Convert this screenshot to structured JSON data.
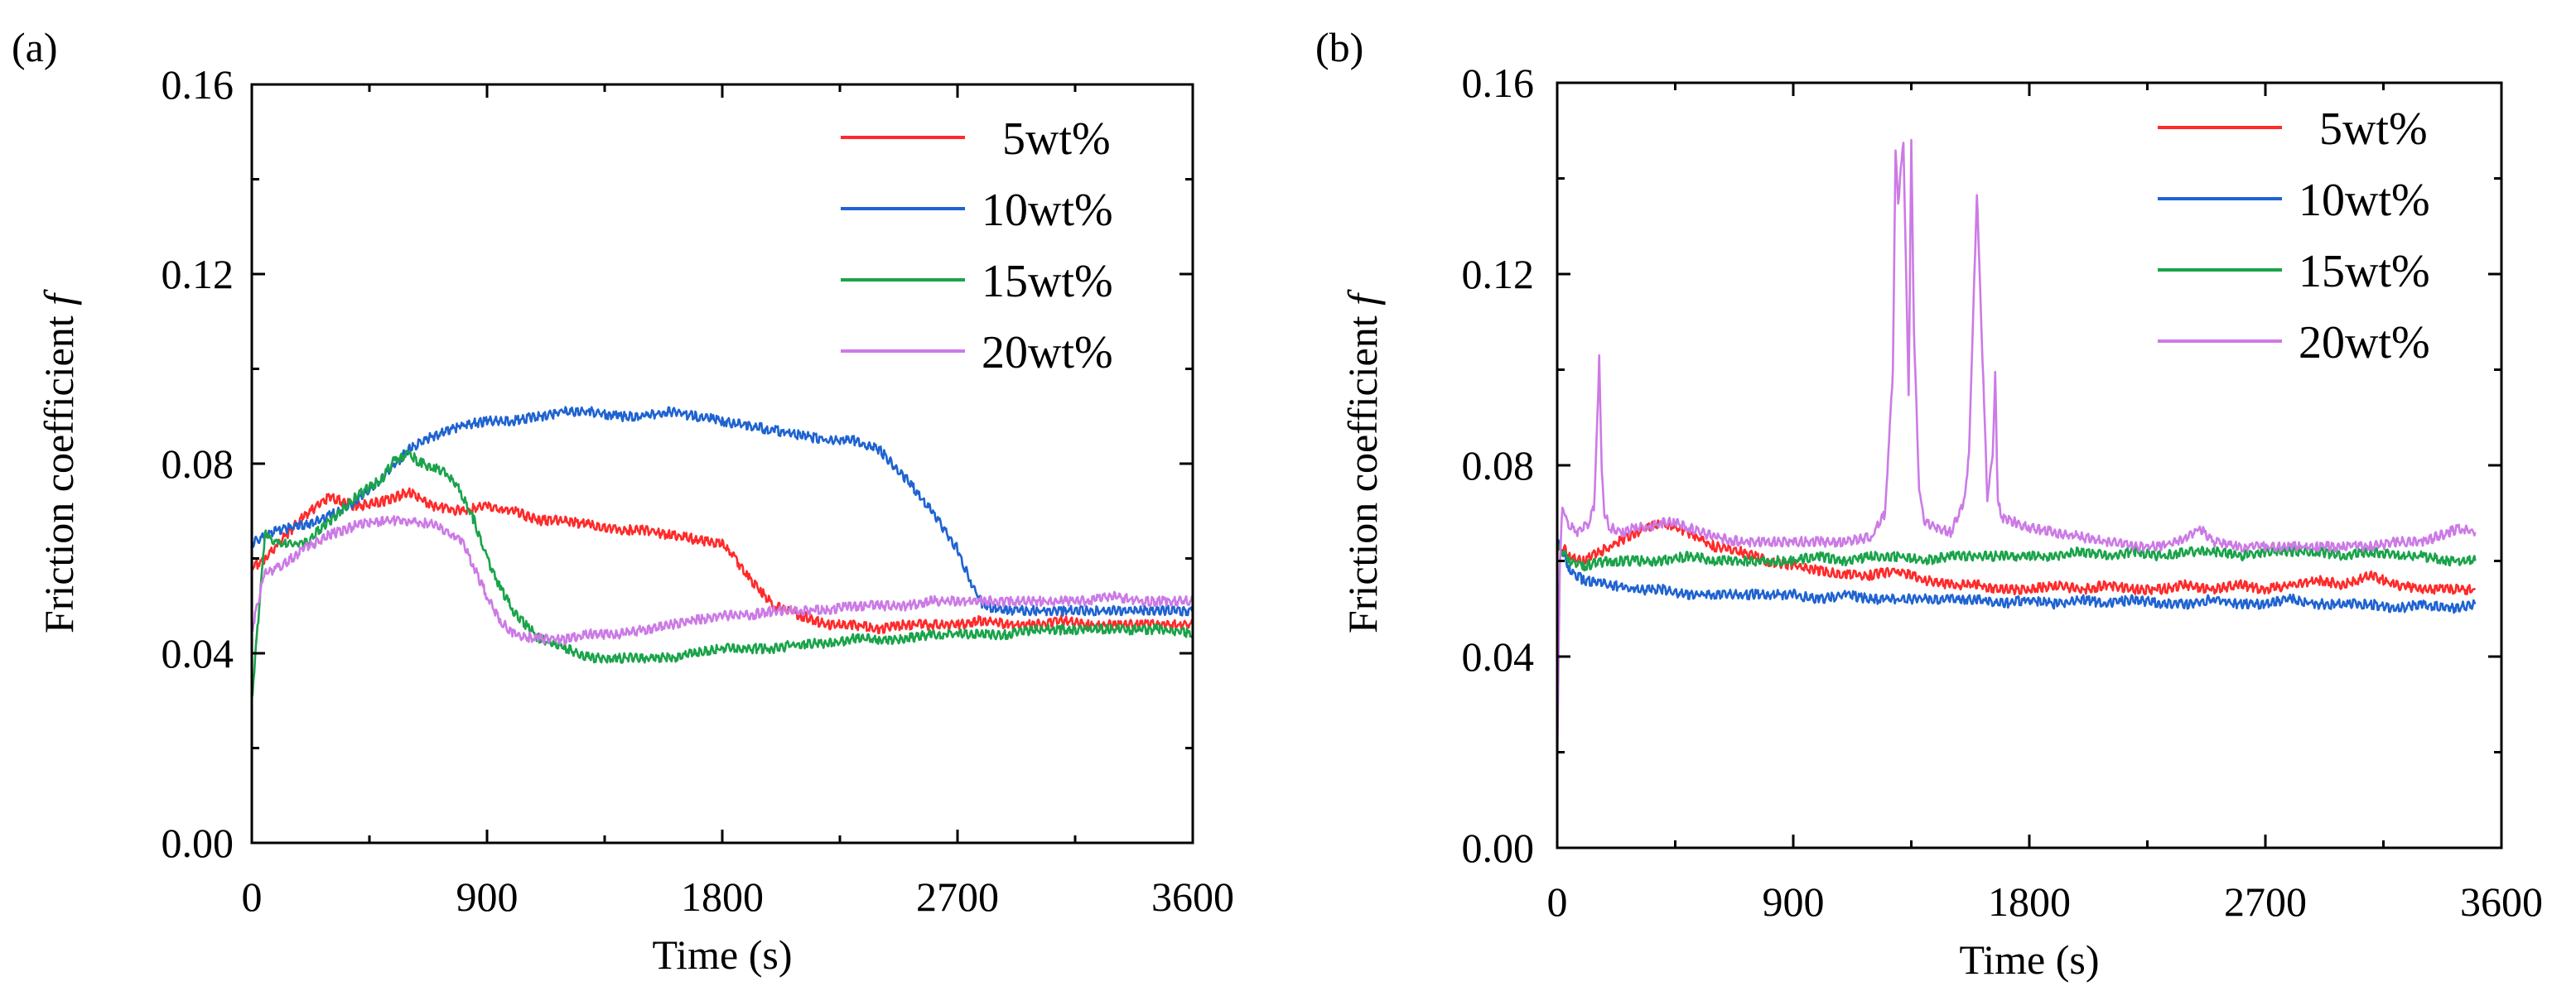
{
  "figure": {
    "panels": [
      {
        "label": "(a)",
        "xlabel": "Time (s)",
        "ylabel": "Friction coefficient f",
        "ylabel_text": "Friction coefficient ",
        "ylabel_symbol": "f",
        "xlim": [
          0,
          3600
        ],
        "ylim": [
          0.0,
          0.16
        ],
        "x_ticks": [
          "0",
          "900",
          "1800",
          "2700",
          "3600"
        ],
        "y_ticks": [
          "0.00",
          "0.04",
          "0.08",
          "0.12",
          "0.16"
        ]
      },
      {
        "label": "(b)",
        "xlabel": "Time (s)",
        "ylabel": "Friction coefficient f",
        "ylabel_text": "Friction coefficient ",
        "ylabel_symbol": "f",
        "xlim": [
          0,
          3600
        ],
        "ylim": [
          0.0,
          0.16
        ],
        "x_ticks": [
          "0",
          "900",
          "1800",
          "2700",
          "3600"
        ],
        "y_ticks": [
          "0.00",
          "0.04",
          "0.08",
          "0.12",
          "0.16"
        ]
      }
    ]
  },
  "chart_data": [
    {
      "type": "line",
      "xlabel": "Time (s)",
      "ylabel": "Friction coefficient f",
      "xlim": [
        0,
        3600
      ],
      "ylim": [
        0.0,
        0.16
      ],
      "legend_position": "top-right",
      "grid": false,
      "series": [
        {
          "name": "5wt%",
          "color": "#ff2a2a",
          "x": [
            0,
            50,
            100,
            200,
            300,
            400,
            500,
            600,
            700,
            800,
            900,
            1000,
            1100,
            1200,
            1300,
            1400,
            1500,
            1600,
            1700,
            1800,
            1850,
            1900,
            1950,
            2000,
            2100,
            2200,
            2300,
            2400,
            2500,
            2600,
            2700,
            2800,
            2900,
            3000,
            3100,
            3200,
            3300,
            3400,
            3500,
            3600
          ],
          "y": [
            0.058,
            0.06,
            0.063,
            0.069,
            0.073,
            0.071,
            0.072,
            0.074,
            0.071,
            0.07,
            0.071,
            0.07,
            0.068,
            0.068,
            0.067,
            0.066,
            0.066,
            0.065,
            0.064,
            0.063,
            0.06,
            0.056,
            0.053,
            0.05,
            0.048,
            0.046,
            0.046,
            0.045,
            0.046,
            0.046,
            0.046,
            0.047,
            0.046,
            0.046,
            0.047,
            0.046,
            0.046,
            0.046,
            0.046,
            0.046
          ]
        },
        {
          "name": "10wt%",
          "color": "#1f63d1",
          "x": [
            0,
            50,
            100,
            200,
            300,
            400,
            500,
            600,
            700,
            800,
            900,
            1000,
            1100,
            1200,
            1300,
            1400,
            1500,
            1600,
            1700,
            1800,
            1900,
            2000,
            2100,
            2200,
            2300,
            2400,
            2500,
            2600,
            2700,
            2750,
            2800,
            2900,
            3000,
            3100,
            3200,
            3300,
            3400,
            3500,
            3600
          ],
          "y": [
            0.063,
            0.065,
            0.066,
            0.067,
            0.069,
            0.072,
            0.077,
            0.083,
            0.086,
            0.088,
            0.089,
            0.089,
            0.09,
            0.091,
            0.091,
            0.09,
            0.09,
            0.091,
            0.09,
            0.089,
            0.088,
            0.087,
            0.086,
            0.085,
            0.085,
            0.083,
            0.077,
            0.07,
            0.062,
            0.055,
            0.05,
            0.049,
            0.049,
            0.049,
            0.049,
            0.049,
            0.049,
            0.049,
            0.049
          ]
        },
        {
          "name": "15wt%",
          "color": "#1aa34a",
          "x": [
            0,
            50,
            100,
            200,
            300,
            400,
            500,
            550,
            600,
            650,
            700,
            750,
            800,
            850,
            900,
            950,
            1000,
            1100,
            1200,
            1300,
            1400,
            1500,
            1600,
            1700,
            1800,
            1900,
            2000,
            2100,
            2200,
            2300,
            2400,
            2500,
            2600,
            2700,
            2800,
            2900,
            3000,
            3100,
            3200,
            3300,
            3400,
            3500,
            3600
          ],
          "y": [
            0.03,
            0.065,
            0.063,
            0.063,
            0.068,
            0.073,
            0.077,
            0.081,
            0.082,
            0.08,
            0.079,
            0.078,
            0.074,
            0.068,
            0.06,
            0.054,
            0.049,
            0.043,
            0.041,
            0.039,
            0.039,
            0.039,
            0.039,
            0.04,
            0.041,
            0.041,
            0.041,
            0.042,
            0.042,
            0.043,
            0.043,
            0.043,
            0.044,
            0.044,
            0.044,
            0.044,
            0.045,
            0.045,
            0.045,
            0.045,
            0.045,
            0.045,
            0.044
          ]
        },
        {
          "name": "20wt%",
          "color": "#cc7ae6",
          "x": [
            0,
            50,
            100,
            200,
            300,
            400,
            500,
            600,
            700,
            800,
            850,
            900,
            950,
            1000,
            1100,
            1200,
            1300,
            1400,
            1500,
            1600,
            1700,
            1800,
            1900,
            2000,
            2100,
            2200,
            2300,
            2400,
            2500,
            2600,
            2700,
            2800,
            2900,
            3000,
            3100,
            3200,
            3300,
            3400,
            3500,
            3600
          ],
          "y": [
            0.045,
            0.057,
            0.058,
            0.062,
            0.065,
            0.067,
            0.068,
            0.068,
            0.067,
            0.064,
            0.058,
            0.052,
            0.047,
            0.044,
            0.043,
            0.043,
            0.044,
            0.044,
            0.045,
            0.046,
            0.047,
            0.048,
            0.048,
            0.049,
            0.049,
            0.049,
            0.05,
            0.05,
            0.05,
            0.051,
            0.051,
            0.051,
            0.051,
            0.051,
            0.051,
            0.051,
            0.052,
            0.051,
            0.051,
            0.051
          ]
        }
      ]
    },
    {
      "type": "line",
      "xlabel": "Time (s)",
      "ylabel": "Friction coefficient f",
      "xlim": [
        0,
        3600
      ],
      "ylim": [
        0.0,
        0.16
      ],
      "legend_position": "top-right",
      "grid": false,
      "series": [
        {
          "name": "5wt%",
          "color": "#ff2a2a",
          "x": [
            0,
            20,
            50,
            100,
            200,
            300,
            400,
            500,
            600,
            700,
            800,
            900,
            1000,
            1100,
            1200,
            1300,
            1400,
            1500,
            1600,
            1700,
            1800,
            1900,
            2000,
            2100,
            2200,
            2300,
            2400,
            2500,
            2600,
            2700,
            2800,
            2900,
            3000,
            3100,
            3200,
            3300,
            3400,
            3500
          ],
          "y": [
            0.062,
            0.063,
            0.061,
            0.06,
            0.063,
            0.066,
            0.068,
            0.066,
            0.063,
            0.062,
            0.06,
            0.059,
            0.058,
            0.057,
            0.057,
            0.058,
            0.056,
            0.055,
            0.055,
            0.054,
            0.054,
            0.055,
            0.054,
            0.055,
            0.054,
            0.054,
            0.055,
            0.054,
            0.055,
            0.054,
            0.055,
            0.056,
            0.055,
            0.057,
            0.055,
            0.054,
            0.054,
            0.054
          ]
        },
        {
          "name": "10wt%",
          "color": "#1f63d1",
          "x": [
            0,
            20,
            50,
            100,
            200,
            300,
            400,
            500,
            600,
            700,
            800,
            900,
            1000,
            1100,
            1200,
            1300,
            1400,
            1500,
            1600,
            1700,
            1800,
            1900,
            2000,
            2100,
            2200,
            2300,
            2400,
            2500,
            2600,
            2700,
            2800,
            2900,
            3000,
            3100,
            3200,
            3300,
            3400,
            3500
          ],
          "y": [
            0.064,
            0.062,
            0.058,
            0.056,
            0.055,
            0.054,
            0.054,
            0.053,
            0.053,
            0.053,
            0.053,
            0.053,
            0.052,
            0.053,
            0.052,
            0.052,
            0.052,
            0.052,
            0.052,
            0.051,
            0.052,
            0.051,
            0.052,
            0.051,
            0.052,
            0.051,
            0.051,
            0.052,
            0.051,
            0.051,
            0.052,
            0.051,
            0.051,
            0.051,
            0.05,
            0.051,
            0.05,
            0.051
          ]
        },
        {
          "name": "15wt%",
          "color": "#1aa34a",
          "x": [
            0,
            20,
            50,
            100,
            200,
            300,
            400,
            500,
            600,
            700,
            800,
            900,
            1000,
            1100,
            1200,
            1300,
            1400,
            1500,
            1600,
            1700,
            1800,
            1900,
            2000,
            2100,
            2200,
            2300,
            2400,
            2500,
            2600,
            2700,
            2800,
            2900,
            3000,
            3100,
            3200,
            3300,
            3400,
            3500
          ],
          "y": [
            0.063,
            0.062,
            0.06,
            0.059,
            0.06,
            0.06,
            0.06,
            0.061,
            0.06,
            0.06,
            0.06,
            0.06,
            0.061,
            0.06,
            0.061,
            0.061,
            0.06,
            0.061,
            0.061,
            0.061,
            0.061,
            0.061,
            0.062,
            0.061,
            0.062,
            0.061,
            0.062,
            0.062,
            0.061,
            0.062,
            0.062,
            0.062,
            0.061,
            0.062,
            0.061,
            0.061,
            0.06,
            0.06
          ]
        },
        {
          "name": "20wt%",
          "color": "#cc7ae6",
          "x": [
            0,
            10,
            20,
            40,
            60,
            80,
            100,
            120,
            140,
            150,
            160,
            170,
            180,
            200,
            250,
            300,
            350,
            400,
            450,
            500,
            600,
            700,
            800,
            900,
            1000,
            1100,
            1200,
            1250,
            1280,
            1290,
            1300,
            1320,
            1340,
            1350,
            1360,
            1380,
            1400,
            1500,
            1550,
            1570,
            1580,
            1600,
            1640,
            1660,
            1670,
            1680,
            1700,
            1750,
            1800,
            1900,
            2000,
            2100,
            2200,
            2300,
            2400,
            2450,
            2500,
            2600,
            2700,
            2800,
            2900,
            3000,
            3100,
            3200,
            3300,
            3400,
            3450,
            3500
          ],
          "y": [
            0.016,
            0.06,
            0.072,
            0.068,
            0.067,
            0.066,
            0.067,
            0.068,
            0.071,
            0.085,
            0.102,
            0.078,
            0.07,
            0.067,
            0.066,
            0.067,
            0.067,
            0.068,
            0.068,
            0.067,
            0.065,
            0.064,
            0.064,
            0.064,
            0.064,
            0.064,
            0.065,
            0.07,
            0.1,
            0.146,
            0.135,
            0.148,
            0.094,
            0.148,
            0.108,
            0.075,
            0.068,
            0.066,
            0.072,
            0.082,
            0.1,
            0.137,
            0.073,
            0.082,
            0.099,
            0.072,
            0.069,
            0.068,
            0.067,
            0.066,
            0.065,
            0.064,
            0.063,
            0.063,
            0.065,
            0.067,
            0.064,
            0.063,
            0.063,
            0.063,
            0.063,
            0.063,
            0.063,
            0.064,
            0.064,
            0.066,
            0.067,
            0.066
          ]
        }
      ]
    }
  ]
}
